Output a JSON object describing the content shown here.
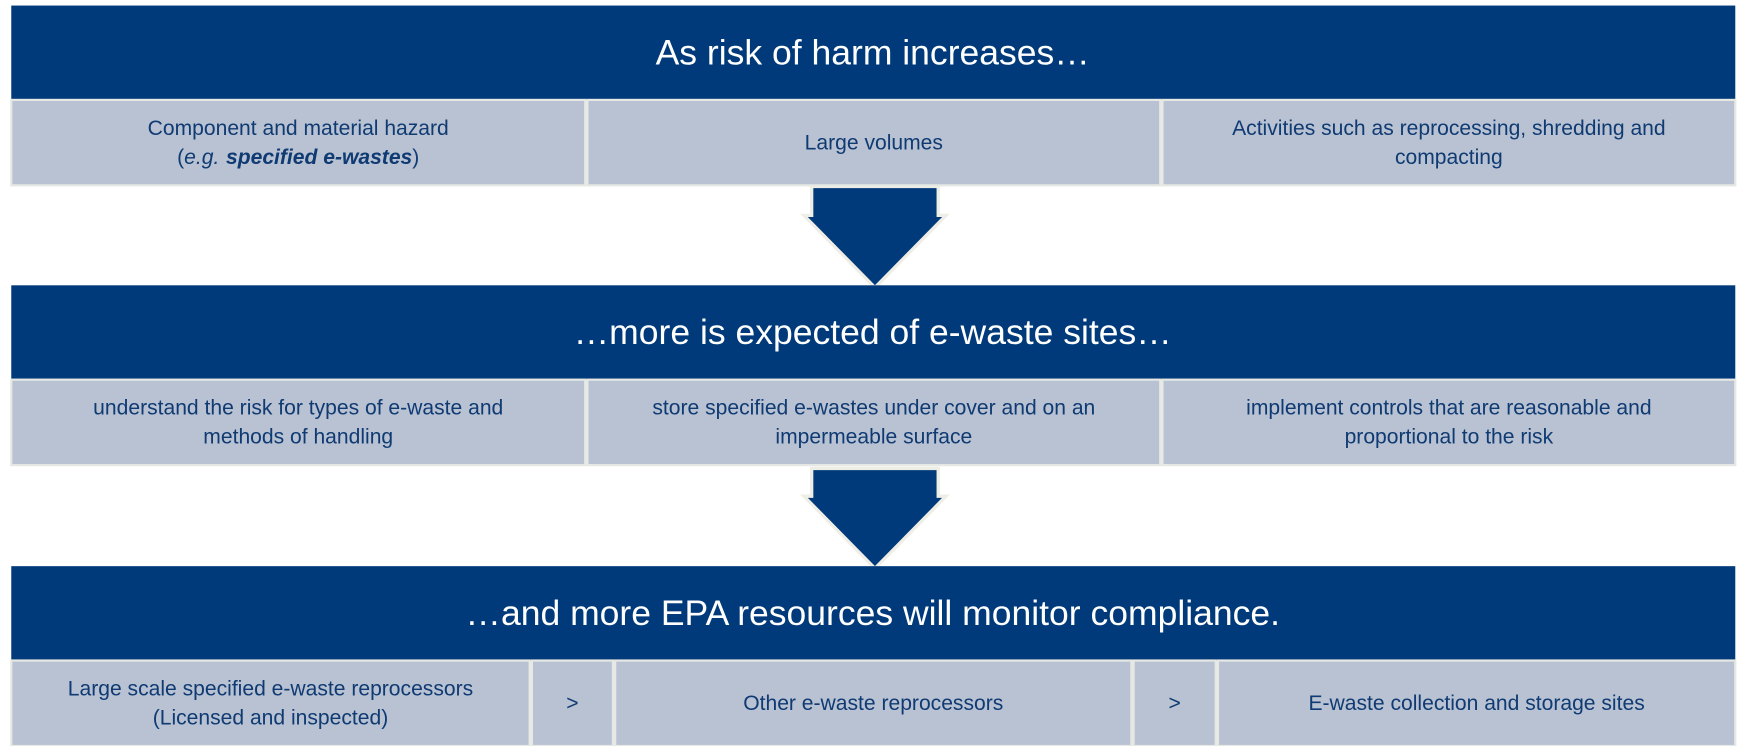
{
  "sections": [
    {
      "title": "As risk of harm increases…",
      "cells": [
        {
          "lines": [
            "Component and material hazard"
          ],
          "detail": [
            "(",
            "e.g.",
            "specified e-wastes",
            ")"
          ]
        },
        {
          "lines": [
            "Large volumes"
          ]
        },
        {
          "lines": [
            "Activities such as reprocessing, shredding and",
            "compacting"
          ]
        }
      ]
    },
    {
      "title": "…more is expected of e-waste sites…",
      "cells": [
        {
          "lines": [
            "understand the risk for types of e-waste and",
            "methods of handling"
          ]
        },
        {
          "lines": [
            "store specified e-wastes under cover and on an",
            "impermeable surface"
          ]
        },
        {
          "lines": [
            "implement controls that are reasonable and",
            "proportional to the risk"
          ]
        }
      ]
    },
    {
      "title": "…and more EPA resources will monitor compliance.",
      "cells": [
        {
          "lines": [
            "Large scale specified e-waste reprocessors",
            "(Licensed and inspected)"
          ]
        },
        {
          "lines": [
            ">"
          ]
        },
        {
          "lines": [
            "Other e-waste reprocessors"
          ]
        },
        {
          "lines": [
            ">"
          ]
        },
        {
          "lines": [
            "E-waste collection and storage sites"
          ]
        }
      ]
    }
  ]
}
